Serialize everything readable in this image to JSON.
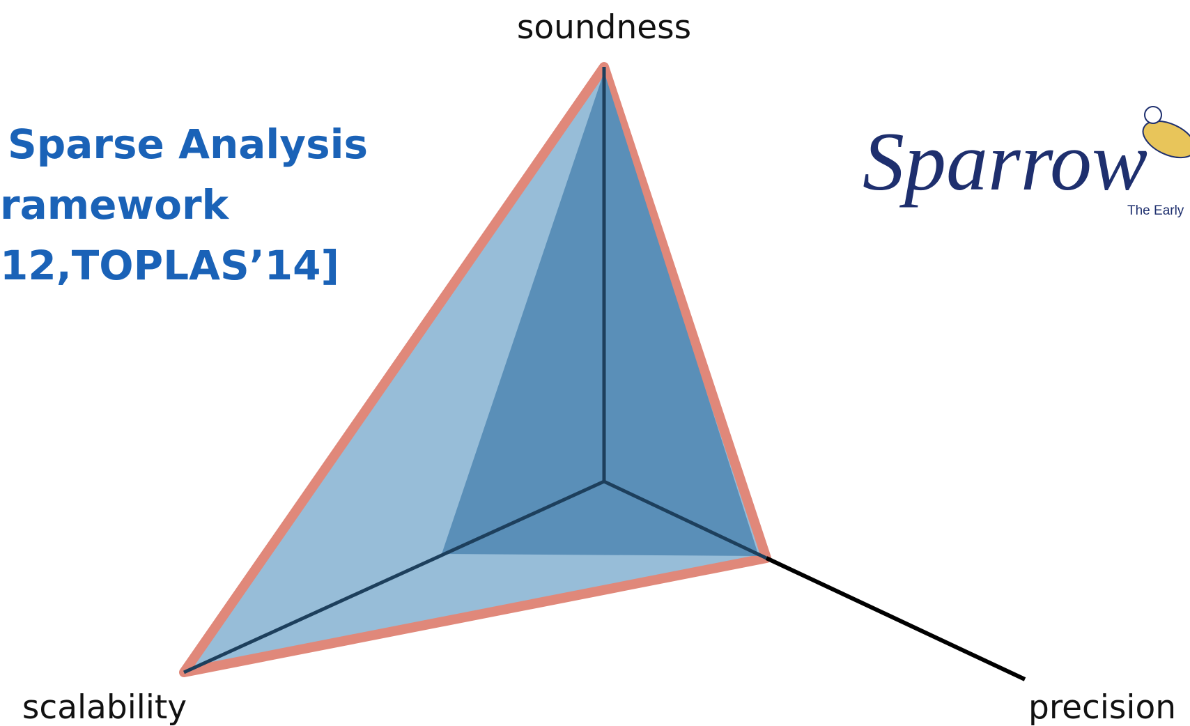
{
  "title": {
    "lines": [
      "Sparse Analysis",
      "ramework",
      "12,TOPLAS’14]"
    ]
  },
  "diagram": {
    "axes": {
      "top": "soundness",
      "left": "scalability",
      "right": "precision"
    }
  },
  "logo": {
    "name": "Sparrow",
    "tagline": "The Early"
  }
}
